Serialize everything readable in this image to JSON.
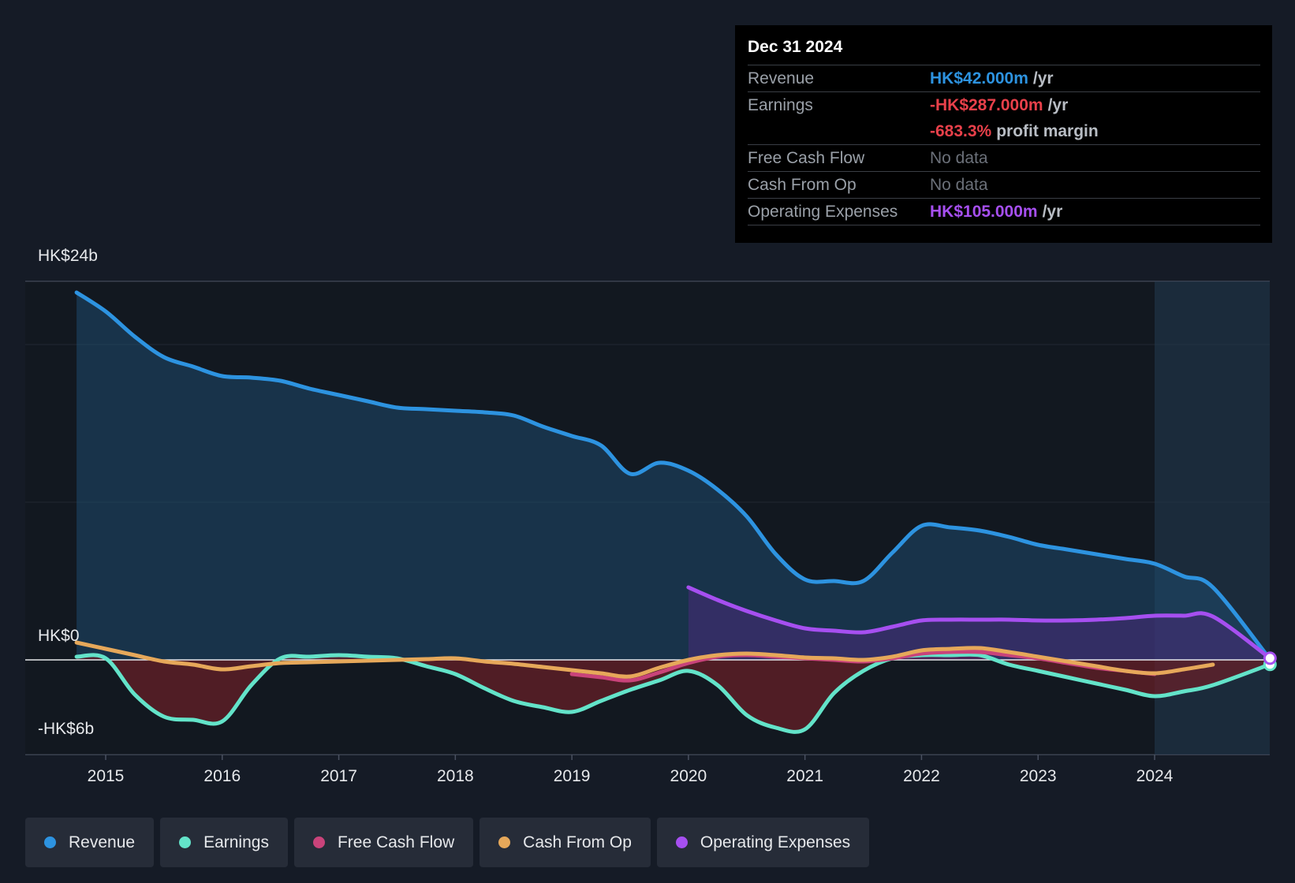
{
  "tooltip": {
    "date": "Dec 31 2024",
    "rows": {
      "revenue": {
        "label": "Revenue",
        "value": "HK$42.000m",
        "unit": "/yr",
        "color": "#2d93e0"
      },
      "earnings": {
        "label": "Earnings",
        "value": "-HK$287.000m",
        "unit": "/yr",
        "color": "#e8404a"
      },
      "margin": {
        "value": "-683.3%",
        "unit": "profit margin",
        "color": "#e8404a"
      },
      "fcf": {
        "label": "Free Cash Flow",
        "value": "No data",
        "color": "#6b7079"
      },
      "cfo": {
        "label": "Cash From Op",
        "value": "No data",
        "color": "#6b7079"
      },
      "opex": {
        "label": "Operating Expenses",
        "value": "HK$105.000m",
        "unit": "/yr",
        "color": "#a64ff0"
      }
    }
  },
  "legend": {
    "revenue": "Revenue",
    "earnings": "Earnings",
    "fcf": "Free Cash Flow",
    "cfo": "Cash From Op",
    "opex": "Operating Expenses"
  },
  "chart_data": {
    "type": "line",
    "title": "",
    "xlabel": "",
    "ylabel": "",
    "y_tick_labels": [
      "HK$24b",
      "HK$0",
      "-HK$6b"
    ],
    "ylim": [
      -6,
      24
    ],
    "xlim": [
      2014.55,
      2024.99
    ],
    "x_ticks": [
      2015,
      2016,
      2017,
      2018,
      2019,
      2020,
      2021,
      2022,
      2023,
      2024
    ],
    "x_tick_labels": [
      "2015",
      "2016",
      "2017",
      "2018",
      "2019",
      "2020",
      "2021",
      "2022",
      "2023",
      "2024"
    ],
    "highlight_from": 2024.0,
    "colors": {
      "revenue": "#2d93e0",
      "earnings": "#63e3c9",
      "fcf": "#c9437a",
      "cfo": "#e6a85a",
      "opex": "#a64ff0"
    },
    "series": [
      {
        "key": "revenue",
        "name": "Revenue",
        "x": [
          2014.75,
          2015.0,
          2015.25,
          2015.5,
          2015.75,
          2016.0,
          2016.25,
          2016.5,
          2016.75,
          2017.0,
          2017.25,
          2017.5,
          2017.75,
          2018.0,
          2018.25,
          2018.5,
          2018.75,
          2019.0,
          2019.25,
          2019.5,
          2019.75,
          2020.0,
          2020.25,
          2020.5,
          2020.75,
          2021.0,
          2021.25,
          2021.5,
          2021.75,
          2022.0,
          2022.25,
          2022.5,
          2022.75,
          2023.0,
          2023.25,
          2023.5,
          2023.75,
          2024.0,
          2024.25,
          2024.5,
          2024.99
        ],
        "values": [
          23.3,
          22.1,
          20.5,
          19.2,
          18.6,
          18.0,
          17.9,
          17.7,
          17.2,
          16.8,
          16.4,
          16.0,
          15.9,
          15.8,
          15.7,
          15.5,
          14.8,
          14.2,
          13.6,
          11.8,
          12.5,
          12.0,
          10.8,
          9.1,
          6.7,
          5.1,
          5.0,
          5.0,
          6.8,
          8.5,
          8.4,
          8.2,
          7.8,
          7.3,
          7.0,
          6.7,
          6.4,
          6.1,
          5.3,
          4.6,
          0.042
        ]
      },
      {
        "key": "earnings",
        "name": "Earnings",
        "x": [
          2014.75,
          2015.0,
          2015.25,
          2015.5,
          2015.75,
          2016.0,
          2016.25,
          2016.5,
          2016.75,
          2017.0,
          2017.25,
          2017.5,
          2017.75,
          2018.0,
          2018.25,
          2018.5,
          2018.75,
          2019.0,
          2019.25,
          2019.5,
          2019.75,
          2020.0,
          2020.25,
          2020.5,
          2020.75,
          2021.0,
          2021.25,
          2021.5,
          2021.75,
          2022.0,
          2022.25,
          2022.5,
          2022.75,
          2023.0,
          2023.25,
          2023.5,
          2023.75,
          2024.0,
          2024.25,
          2024.5,
          2024.99
        ],
        "values": [
          0.2,
          0.1,
          -2.2,
          -3.6,
          -3.8,
          -3.9,
          -1.6,
          0.1,
          0.2,
          0.3,
          0.2,
          0.1,
          -0.4,
          -0.9,
          -1.8,
          -2.6,
          -3.0,
          -3.3,
          -2.6,
          -1.9,
          -1.3,
          -0.7,
          -1.6,
          -3.5,
          -4.3,
          -4.4,
          -2.1,
          -0.7,
          0.1,
          0.3,
          0.3,
          0.3,
          -0.3,
          -0.7,
          -1.1,
          -1.5,
          -1.9,
          -2.3,
          -2.0,
          -1.6,
          -0.287
        ]
      },
      {
        "key": "fcf",
        "name": "Free Cash Flow",
        "x": [
          2019.0,
          2019.25,
          2019.5,
          2019.75,
          2020.0,
          2020.25,
          2020.5,
          2020.75,
          2021.0,
          2021.25,
          2021.5,
          2021.75,
          2022.0,
          2022.25,
          2022.5,
          2022.75,
          2023.0,
          2023.25,
          2023.5,
          2023.75,
          2024.0
        ],
        "values": [
          -0.9,
          -1.1,
          -1.3,
          -0.8,
          -0.2,
          0.2,
          0.3,
          0.2,
          0.1,
          0.0,
          -0.1,
          0.1,
          0.4,
          0.5,
          0.5,
          0.3,
          0.1,
          -0.2,
          -0.5,
          -0.7,
          -0.9
        ]
      },
      {
        "key": "cfo",
        "name": "Cash From Op",
        "x": [
          2014.75,
          2015.0,
          2015.25,
          2015.5,
          2015.75,
          2016.0,
          2016.25,
          2016.5,
          2016.75,
          2017.0,
          2017.25,
          2017.5,
          2017.75,
          2018.0,
          2018.25,
          2018.5,
          2018.75,
          2019.0,
          2019.25,
          2019.5,
          2019.75,
          2020.0,
          2020.25,
          2020.5,
          2020.75,
          2021.0,
          2021.25,
          2021.5,
          2021.75,
          2022.0,
          2022.25,
          2022.5,
          2022.75,
          2023.0,
          2023.25,
          2023.5,
          2023.75,
          2024.0,
          2024.25,
          2024.5
        ],
        "values": [
          1.1,
          0.7,
          0.3,
          -0.1,
          -0.3,
          -0.6,
          -0.4,
          -0.2,
          -0.15,
          -0.1,
          -0.05,
          0.0,
          0.05,
          0.1,
          -0.1,
          -0.25,
          -0.45,
          -0.65,
          -0.85,
          -1.05,
          -0.5,
          0.0,
          0.3,
          0.4,
          0.3,
          0.15,
          0.1,
          0.0,
          0.2,
          0.6,
          0.7,
          0.75,
          0.5,
          0.2,
          -0.1,
          -0.4,
          -0.7,
          -0.85,
          -0.6,
          -0.3
        ]
      },
      {
        "key": "opex",
        "name": "Operating Expenses",
        "x": [
          2020.0,
          2020.25,
          2020.5,
          2020.75,
          2021.0,
          2021.25,
          2021.5,
          2021.75,
          2022.0,
          2022.25,
          2022.5,
          2022.75,
          2023.0,
          2023.25,
          2023.5,
          2023.75,
          2024.0,
          2024.25,
          2024.5,
          2024.99
        ],
        "values": [
          4.6,
          3.8,
          3.1,
          2.5,
          2.0,
          1.85,
          1.75,
          2.1,
          2.5,
          2.55,
          2.55,
          2.55,
          2.5,
          2.5,
          2.55,
          2.65,
          2.8,
          2.8,
          2.75,
          0.105
        ]
      }
    ]
  }
}
